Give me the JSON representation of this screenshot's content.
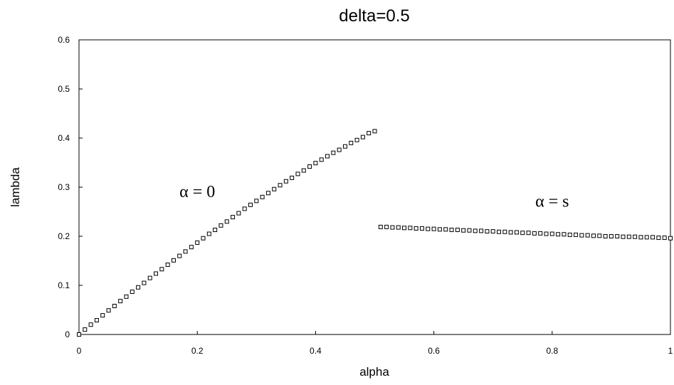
{
  "chart_data": {
    "type": "scatter",
    "title": "delta=0.5",
    "xlabel": "alpha",
    "ylabel": "lambda",
    "xlim": [
      0,
      1
    ],
    "ylim": [
      0,
      0.6
    ],
    "xticks": [
      "0",
      "0.2",
      "0.4",
      "0.6",
      "0.8",
      "1"
    ],
    "yticks": [
      "0",
      "0.1",
      "0.2",
      "0.3",
      "0.4",
      "0.5",
      "0.6"
    ],
    "grid": false,
    "marker": "hollow-square",
    "annotations": [
      {
        "text": "α = 0",
        "x": 0.2,
        "y": 0.28
      },
      {
        "text": "α = s",
        "x": 0.8,
        "y": 0.26
      }
    ],
    "series": [
      {
        "x": [
          0,
          0.01,
          0.02,
          0.03,
          0.04,
          0.05,
          0.06,
          0.07,
          0.08,
          0.09,
          0.1,
          0.11,
          0.12,
          0.13,
          0.14,
          0.15,
          0.16,
          0.17,
          0.18,
          0.19,
          0.2,
          0.21,
          0.22,
          0.23,
          0.24,
          0.25,
          0.26,
          0.27,
          0.28,
          0.29,
          0.3,
          0.31,
          0.32,
          0.33,
          0.34,
          0.35,
          0.36,
          0.37,
          0.38,
          0.39,
          0.4,
          0.41,
          0.42,
          0.43,
          0.44,
          0.45,
          0.46,
          0.47,
          0.48,
          0.49,
          0.5
        ],
        "y": [
          0,
          0.01,
          0.02,
          0.029,
          0.039,
          0.049,
          0.058,
          0.068,
          0.077,
          0.087,
          0.096,
          0.105,
          0.115,
          0.124,
          0.133,
          0.142,
          0.151,
          0.16,
          0.169,
          0.178,
          0.187,
          0.196,
          0.205,
          0.213,
          0.222,
          0.23,
          0.239,
          0.247,
          0.256,
          0.264,
          0.272,
          0.28,
          0.288,
          0.296,
          0.304,
          0.312,
          0.319,
          0.327,
          0.334,
          0.342,
          0.349,
          0.356,
          0.363,
          0.37,
          0.376,
          0.383,
          0.39,
          0.396,
          0.402,
          0.41,
          0.414
        ]
      },
      {
        "x": [
          0.51,
          0.52,
          0.53,
          0.54,
          0.55,
          0.56,
          0.57,
          0.58,
          0.59,
          0.6,
          0.61,
          0.62,
          0.63,
          0.64,
          0.65,
          0.66,
          0.67,
          0.68,
          0.69,
          0.7,
          0.71,
          0.72,
          0.73,
          0.74,
          0.75,
          0.76,
          0.77,
          0.78,
          0.79,
          0.8,
          0.81,
          0.82,
          0.83,
          0.84,
          0.85,
          0.86,
          0.87,
          0.88,
          0.89,
          0.9,
          0.91,
          0.92,
          0.93,
          0.94,
          0.95,
          0.96,
          0.97,
          0.98,
          0.99,
          1.0
        ],
        "y": [
          0.219,
          0.219,
          0.218,
          0.218,
          0.217,
          0.217,
          0.216,
          0.216,
          0.215,
          0.215,
          0.214,
          0.214,
          0.213,
          0.213,
          0.212,
          0.212,
          0.211,
          0.211,
          0.21,
          0.21,
          0.209,
          0.209,
          0.208,
          0.208,
          0.207,
          0.207,
          0.206,
          0.206,
          0.205,
          0.205,
          0.204,
          0.204,
          0.203,
          0.203,
          0.202,
          0.202,
          0.201,
          0.201,
          0.2,
          0.2,
          0.2,
          0.199,
          0.199,
          0.199,
          0.198,
          0.198,
          0.198,
          0.197,
          0.197,
          0.196
        ]
      }
    ]
  }
}
